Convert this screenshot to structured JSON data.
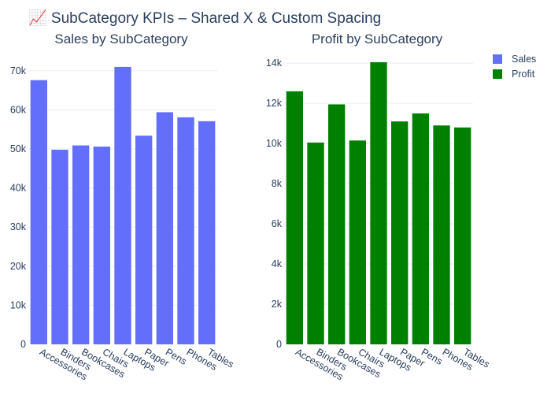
{
  "figure": {
    "title": "📈 SubCategory KPIs – Shared X & Custom Spacing"
  },
  "chart_data": [
    {
      "type": "bar",
      "title": "Sales by SubCategory",
      "xlabel": "",
      "ylabel": "",
      "categories": [
        "Accessories",
        "Binders",
        "Bookcases",
        "Chairs",
        "Laptops",
        "Paper",
        "Pens",
        "Phones",
        "Tables"
      ],
      "series": [
        {
          "name": "Sales",
          "values": [
            67600,
            49800,
            50900,
            50600,
            71000,
            53400,
            59400,
            58100,
            57100
          ],
          "color": "#636efa"
        }
      ],
      "ylim": [
        0,
        74000
      ],
      "yticks": [
        0,
        10000,
        20000,
        30000,
        40000,
        50000,
        60000,
        70000
      ],
      "ytick_labels": [
        "0",
        "10k",
        "20k",
        "30k",
        "40k",
        "50k",
        "60k",
        "70k"
      ],
      "grid": true
    },
    {
      "type": "bar",
      "title": "Profit by SubCategory",
      "xlabel": "",
      "ylabel": "",
      "categories": [
        "Accessories",
        "Binders",
        "Bookcases",
        "Chairs",
        "Laptops",
        "Paper",
        "Pens",
        "Phones",
        "Tables"
      ],
      "series": [
        {
          "name": "Profit",
          "values": [
            12600,
            10050,
            11950,
            10150,
            14050,
            11100,
            11500,
            10900,
            10800
          ],
          "color": "#008000"
        }
      ],
      "ylim": [
        0,
        14400
      ],
      "yticks": [
        0,
        2000,
        4000,
        6000,
        8000,
        10000,
        12000,
        14000
      ],
      "ytick_labels": [
        "0",
        "2k",
        "4k",
        "6k",
        "8k",
        "10k",
        "12k",
        "14k"
      ],
      "grid": true
    }
  ],
  "legend": {
    "placement": "top-right",
    "items": [
      {
        "label": "Sales",
        "color": "#636efa"
      },
      {
        "label": "Profit",
        "color": "#008000"
      }
    ]
  }
}
